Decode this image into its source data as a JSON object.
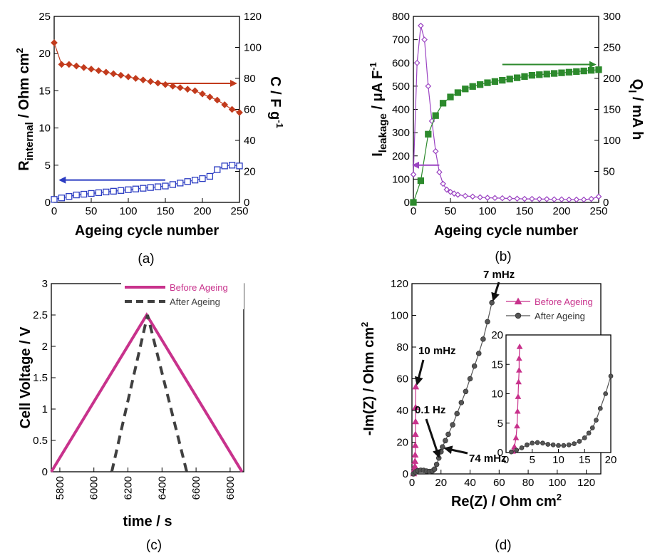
{
  "panel_labels": [
    "(a)",
    "(b)",
    "(c)",
    "(d)"
  ],
  "chart_data": [
    {
      "panel": "(a)",
      "type": "scatter",
      "xlabel": "Ageing cycle number",
      "ylabel": "R_internal / Ohm cm^2",
      "ylabel_right": "C / F g^-1",
      "xlim": [
        0,
        250
      ],
      "ylim": [
        0,
        25
      ],
      "ylim_right": [
        0,
        120
      ],
      "xticks": [
        0,
        50,
        100,
        150,
        200,
        250
      ],
      "yticks": [
        0,
        5,
        10,
        15,
        20,
        25
      ],
      "yticks_right": [
        0,
        20,
        40,
        60,
        80,
        100,
        120
      ],
      "series": [
        {
          "axis": "left",
          "marker": "open-square",
          "color": "#2b3cc2",
          "x": [
            0,
            10,
            20,
            30,
            40,
            50,
            60,
            70,
            80,
            90,
            100,
            110,
            120,
            130,
            140,
            150,
            160,
            170,
            180,
            190,
            200,
            210,
            220,
            230,
            240,
            250
          ],
          "y": [
            0.4,
            0.6,
            0.8,
            1.0,
            1.1,
            1.2,
            1.3,
            1.4,
            1.5,
            1.6,
            1.7,
            1.8,
            1.9,
            2.0,
            2.1,
            2.2,
            2.4,
            2.6,
            2.8,
            3.0,
            3.2,
            3.5,
            4.4,
            4.9,
            5.0,
            4.9
          ]
        },
        {
          "axis": "right",
          "marker": "filled-diamond",
          "color": "#c23b1d",
          "x": [
            0,
            10,
            20,
            30,
            40,
            50,
            60,
            70,
            80,
            90,
            100,
            110,
            120,
            130,
            140,
            150,
            160,
            170,
            180,
            190,
            200,
            210,
            220,
            230,
            240,
            250
          ],
          "y": [
            103,
            89,
            89,
            88,
            87,
            86,
            85,
            84,
            83,
            82,
            81,
            80,
            79,
            78,
            77,
            76,
            75,
            74,
            73,
            72,
            70,
            68,
            66,
            63,
            60,
            58
          ]
        }
      ],
      "arrows": [
        {
          "color": "#c23b1d",
          "from": [
            140,
            16
          ],
          "to": [
            245,
            16
          ],
          "points_to": "right axis"
        },
        {
          "color": "#2b3cc2",
          "from": [
            150,
            3
          ],
          "to": [
            8,
            3
          ],
          "points_to": "left axis"
        }
      ]
    },
    {
      "panel": "(b)",
      "type": "scatter",
      "xlabel": "Ageing cycle number",
      "ylabel": "I_leakage / μA F^-1",
      "ylabel_right": "Q_l / mA h",
      "xlim": [
        0,
        250
      ],
      "ylim": [
        0,
        800
      ],
      "ylim_right": [
        0,
        300
      ],
      "xticks": [
        0,
        50,
        100,
        150,
        200,
        250
      ],
      "yticks": [
        0,
        100,
        200,
        300,
        400,
        500,
        600,
        700,
        800
      ],
      "yticks_right": [
        0,
        50,
        100,
        150,
        200,
        250,
        300
      ],
      "series": [
        {
          "axis": "left",
          "marker": "open-diamond",
          "color": "#9b44c2",
          "x": [
            0,
            5,
            10,
            15,
            20,
            25,
            30,
            35,
            40,
            45,
            50,
            55,
            60,
            70,
            80,
            90,
            100,
            110,
            120,
            130,
            140,
            150,
            160,
            170,
            180,
            190,
            200,
            210,
            220,
            230,
            240,
            250
          ],
          "y": [
            120,
            600,
            760,
            700,
            500,
            350,
            220,
            130,
            80,
            55,
            45,
            38,
            33,
            28,
            25,
            22,
            20,
            19,
            18,
            17,
            16,
            15,
            15,
            14,
            14,
            13,
            13,
            12,
            12,
            12,
            15,
            25
          ]
        },
        {
          "axis": "right",
          "marker": "filled-square",
          "color": "#2d8a2d",
          "x": [
            0,
            10,
            20,
            30,
            40,
            50,
            60,
            70,
            80,
            90,
            100,
            110,
            120,
            130,
            140,
            150,
            160,
            170,
            180,
            190,
            200,
            210,
            220,
            230,
            240,
            250
          ],
          "y": [
            0,
            35,
            110,
            140,
            160,
            170,
            177,
            183,
            187,
            190,
            193,
            195,
            197,
            199,
            201,
            203,
            205,
            206,
            207,
            208,
            209,
            210,
            211,
            212,
            213,
            214
          ]
        }
      ],
      "arrows": [
        {
          "color": "#2d8a2d",
          "from": [
            120,
            593
          ],
          "to": [
            245,
            593
          ],
          "points_to": "right axis"
        },
        {
          "color": "#9b44c2",
          "from": [
            35,
            160
          ],
          "to": [
            0,
            160
          ],
          "points_to": "left axis"
        }
      ]
    },
    {
      "panel": "(c)",
      "type": "line",
      "xlabel": "time / s",
      "ylabel": "Cell Voltage / V",
      "xlim": [
        5750,
        6880
      ],
      "ylim": [
        0,
        3
      ],
      "xticks": [
        5800,
        6000,
        6200,
        6400,
        6600,
        6800
      ],
      "yticks": [
        0,
        0.5,
        1,
        1.5,
        2,
        2.5,
        3
      ],
      "legend_position": "top-right",
      "series": [
        {
          "name": "Before Ageing",
          "style": "solid",
          "color": "#c8328c",
          "x": [
            5750,
            6310,
            6870
          ],
          "y": [
            0,
            2.5,
            0
          ]
        },
        {
          "name": "After Ageing",
          "style": "dashed",
          "color": "#404040",
          "x": [
            6105,
            6315,
            6545
          ],
          "y": [
            0,
            2.5,
            0
          ]
        }
      ]
    },
    {
      "panel": "(d)",
      "type": "line",
      "xlabel": "Re(Z) / Ohm cm^2",
      "ylabel": "-Im(Z) / Ohm cm^2",
      "xlim": [
        0,
        130
      ],
      "ylim": [
        0,
        120
      ],
      "xticks": [
        0,
        20,
        40,
        60,
        80,
        100,
        120
      ],
      "yticks": [
        0,
        20,
        40,
        60,
        80,
        100,
        120
      ],
      "legend_position": "top-right",
      "annotations": [
        "7 mHz",
        "10 mHz",
        "0.1 Hz",
        "74 mHz"
      ],
      "series": [
        {
          "name": "Before Ageing",
          "marker": "filled-triangle",
          "color": "#c8328c",
          "x": [
            1.2,
            1.5,
            1.8,
            2.0,
            2.1,
            2.2,
            2.3,
            2.4,
            2.5,
            2.5,
            2.6
          ],
          "y": [
            0.2,
            1.5,
            3.0,
            5,
            8,
            12,
            18,
            25,
            33,
            42,
            55
          ]
        },
        {
          "name": "After Ageing",
          "marker": "filled-circle",
          "color": "#555555",
          "x": [
            1,
            2.5,
            4,
            6,
            8,
            10,
            12,
            14,
            15.5,
            17,
            18.5,
            20,
            21,
            23,
            25,
            28,
            31,
            34,
            37,
            40,
            43,
            46,
            49,
            52,
            55
          ],
          "y": [
            0,
            1.2,
            2.0,
            2.3,
            2.2,
            1.8,
            1.5,
            1.8,
            3,
            6,
            10,
            14,
            17,
            21,
            25,
            31,
            38,
            45,
            52,
            60,
            68,
            76,
            85,
            96,
            108
          ]
        }
      ],
      "inset": {
        "xlim": [
          0,
          20
        ],
        "ylim": [
          0,
          20
        ],
        "xticks": [
          0,
          5,
          10,
          15,
          20
        ],
        "yticks": [
          0,
          5,
          10,
          15,
          20
        ],
        "series": [
          {
            "name": "Before Ageing",
            "marker": "filled-triangle",
            "color": "#c8328c",
            "x": [
              1.3,
              1.6,
              1.9,
              2.1,
              2.2,
              2.3,
              2.4,
              2.5,
              2.5,
              2.6
            ],
            "y": [
              0.2,
              1.0,
              2.5,
              4.5,
              7,
              9.5,
              12,
              14,
              16,
              18
            ]
          },
          {
            "name": "After Ageing",
            "marker": "filled-circle",
            "color": "#555555",
            "x": [
              1,
              2,
              3,
              4,
              5,
              6,
              7,
              8,
              9,
              10,
              11,
              12,
              13,
              14,
              15,
              15.8,
              16.5,
              17.2,
              18,
              19,
              20
            ],
            "y": [
              0.1,
              0.4,
              0.8,
              1.3,
              1.6,
              1.7,
              1.6,
              1.4,
              1.3,
              1.2,
              1.2,
              1.3,
              1.5,
              1.9,
              2.5,
              3.3,
              4.2,
              5.5,
              7.5,
              10.0,
              13.0
            ]
          }
        ]
      }
    }
  ]
}
